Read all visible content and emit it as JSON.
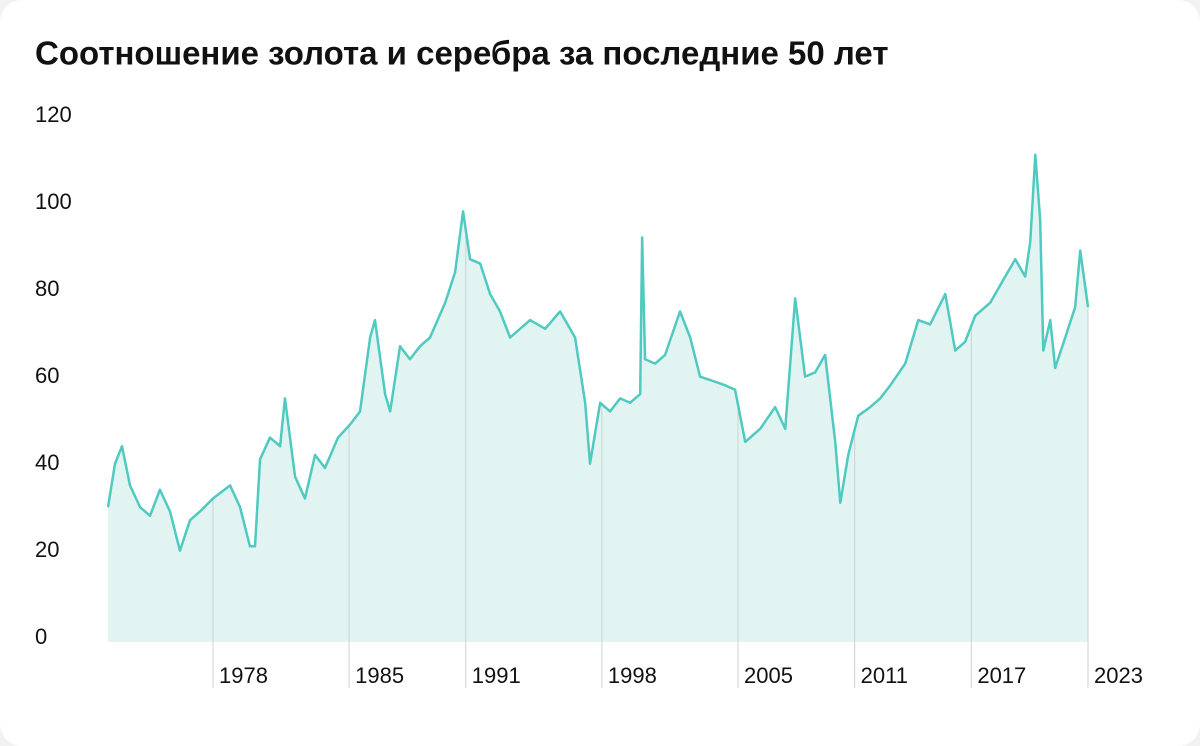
{
  "chart_data": {
    "type": "area",
    "title": "Соотношение золота и серебра за последние 50 лет",
    "color": "#4fcac0",
    "fill": "#e2f4f1",
    "x": [
      1972.6,
      1972.96,
      1973.32,
      1973.73,
      1974.25,
      1974.76,
      1975.27,
      1975.79,
      1976.3,
      1976.82,
      1977.33,
      1978.0,
      1978.88,
      1979.39,
      1979.9,
      1980.16,
      1980.42,
      1980.93,
      1981.45,
      1981.7,
      1982.22,
      1982.73,
      1983.25,
      1983.76,
      1984.43,
      1985.05,
      1985.56,
      1986.08,
      1986.33,
      1986.85,
      1987.11,
      1987.62,
      1988.13,
      1988.65,
      1989.16,
      1989.94,
      1990.45,
      1990.86,
      1991.22,
      1991.74,
      1992.25,
      1992.76,
      1993.28,
      1993.79,
      1994.31,
      1995.08,
      1995.85,
      1996.62,
      1997.14,
      1997.39,
      1997.91,
      1998.42,
      1998.94,
      1999.45,
      1999.97,
      2000.07,
      2000.22,
      2000.74,
      2001.25,
      2002.02,
      2002.54,
      2003.05,
      2003.72,
      2004.34,
      2004.85,
      2005.37,
      2006.14,
      2006.91,
      2007.43,
      2007.94,
      2008.45,
      2008.97,
      2009.48,
      2010.0,
      2010.26,
      2010.67,
      2011.18,
      2011.8,
      2012.31,
      2012.83,
      2013.6,
      2014.27,
      2014.88,
      2015.66,
      2016.17,
      2016.68,
      2017.2,
      2017.97,
      2018.74,
      2019.26,
      2019.77,
      2020.03,
      2020.29,
      2020.54,
      2020.7,
      2021.06,
      2021.31,
      2021.83,
      2022.34,
      2022.6,
      2023.0
    ],
    "values": [
      31,
      41,
      45,
      36,
      31,
      29,
      35,
      30,
      21,
      28,
      30,
      33,
      36,
      31,
      22,
      22,
      42,
      47,
      45,
      56,
      38,
      33,
      43,
      40,
      47,
      50,
      53,
      70,
      74,
      57,
      53,
      68,
      65,
      68,
      70,
      78,
      85,
      99,
      88,
      87,
      80,
      76,
      70,
      72,
      74,
      72,
      76,
      70,
      55,
      41,
      55,
      53,
      56,
      55,
      57,
      93,
      65,
      64,
      66,
      76,
      70,
      61,
      60,
      59,
      58,
      46,
      49,
      54,
      49,
      79,
      61,
      62,
      66,
      46,
      32,
      43,
      52,
      54,
      56,
      59,
      64,
      74,
      73,
      80,
      67,
      69,
      75,
      78,
      84,
      88,
      84,
      92,
      112,
      97,
      67,
      74,
      63,
      70,
      77,
      90,
      77
    ],
    "xlim": [
      1972.6,
      2023.0
    ],
    "xticks": [
      1978,
      1985,
      1991,
      1998,
      2005,
      2011,
      2017,
      2023
    ],
    "ylim": [
      0,
      120
    ],
    "yticks": [
      0,
      20,
      40,
      60,
      80,
      100,
      120
    ]
  }
}
